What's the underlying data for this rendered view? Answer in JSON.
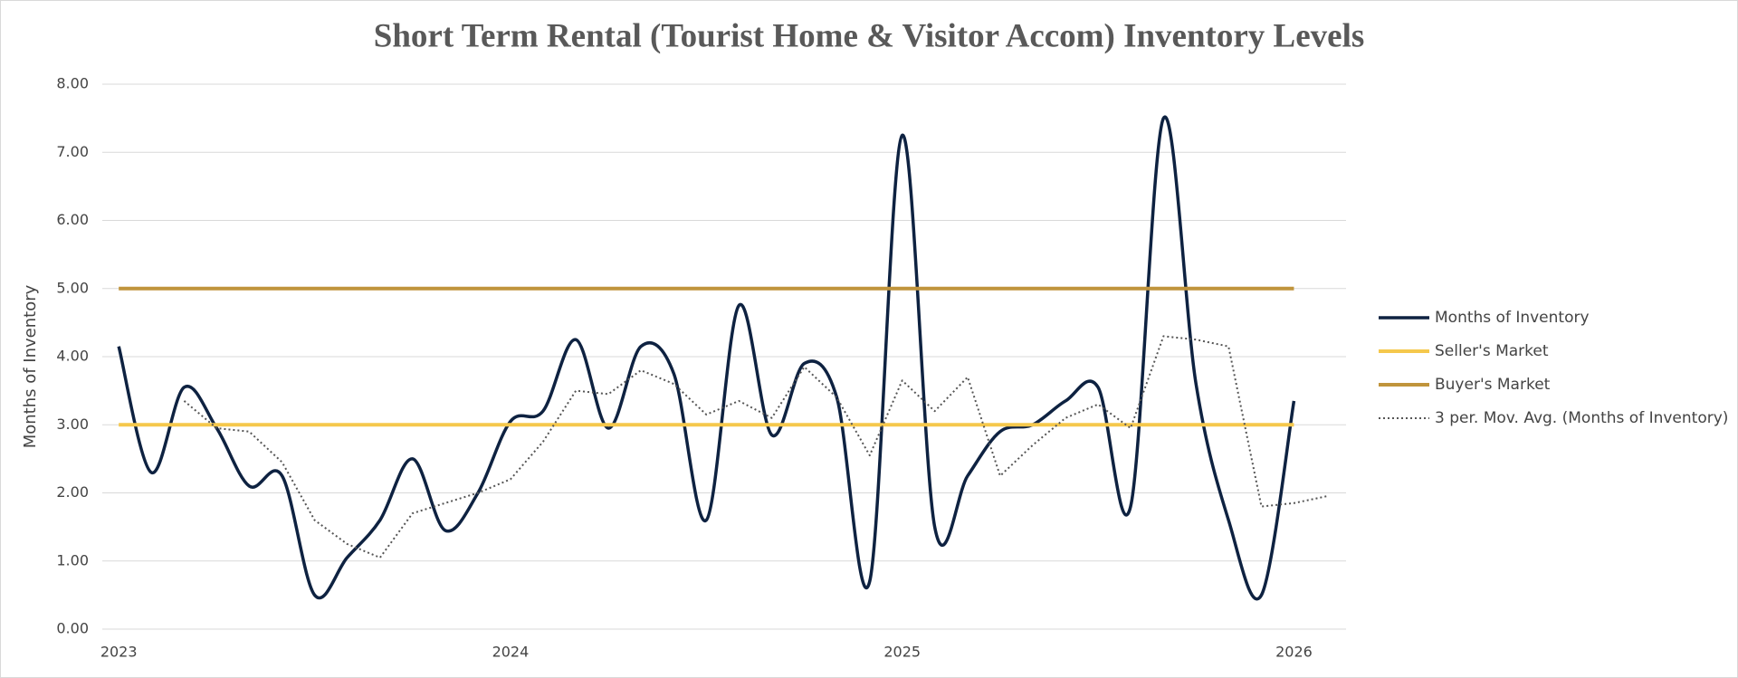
{
  "chart_data": {
    "type": "line",
    "title": "Short Term Rental (Tourist Home & Visitor Accom) Inventory Levels",
    "y_label": "Months of Inventory",
    "x": [
      2023,
      2023.083,
      2023.167,
      2023.25,
      2023.333,
      2023.417,
      2023.5,
      2023.583,
      2023.667,
      2023.75,
      2023.833,
      2023.917,
      2024,
      2024.083,
      2024.167,
      2024.25,
      2024.333,
      2024.417,
      2024.5,
      2024.583,
      2024.667,
      2024.75,
      2024.833,
      2024.917,
      2025,
      2025.083,
      2025.167,
      2025.25,
      2025.333,
      2025.417,
      2025.5,
      2025.583,
      2025.667,
      2025.75,
      2025.833,
      2025.917,
      2026,
      2026.083
    ],
    "xlim": [
      2022.958,
      2026.133
    ],
    "xticks": [
      2023,
      2024,
      2025,
      2026
    ],
    "ylim": [
      0,
      8
    ],
    "yticks": [
      {
        "value": 0,
        "label": "0.00"
      },
      {
        "value": 1,
        "label": "1.00"
      },
      {
        "value": 2,
        "label": "2.00"
      },
      {
        "value": 3,
        "label": "3.00"
      },
      {
        "value": 4,
        "label": "4.00"
      },
      {
        "value": 5,
        "label": "5.00"
      },
      {
        "value": 6,
        "label": "6.00"
      },
      {
        "value": 7,
        "label": "7.00"
      },
      {
        "value": 8,
        "label": "8.00"
      }
    ],
    "grid": true,
    "legend": "right",
    "series": [
      {
        "name": "Months of Inventory",
        "color": "#0e2241",
        "smooth": true,
        "width": 3.5,
        "values": [
          4.15,
          2.3,
          3.55,
          2.95,
          2.1,
          2.25,
          0.5,
          1.05,
          1.6,
          2.5,
          1.45,
          2.0,
          3.05,
          3.2,
          4.25,
          2.95,
          4.15,
          3.75,
          1.6,
          4.75,
          2.85,
          3.9,
          3.4,
          0.7,
          7.25,
          1.5,
          2.25,
          2.9,
          3.0,
          3.35,
          3.55,
          1.8,
          7.5,
          3.6,
          1.6,
          0.5,
          3.35,
          null
        ]
      },
      {
        "name": "Seller's Market",
        "color": "#f5c84c",
        "width": 4,
        "values": [
          3,
          3,
          3,
          3,
          3,
          3,
          3,
          3,
          3,
          3,
          3,
          3,
          3,
          3,
          3,
          3,
          3,
          3,
          3,
          3,
          3,
          3,
          3,
          3,
          3,
          3,
          3,
          3,
          3,
          3,
          3,
          3,
          3,
          3,
          3,
          3,
          3,
          null
        ]
      },
      {
        "name": "Buyer's Market",
        "color": "#c0943c",
        "width": 4,
        "values": [
          5,
          5,
          5,
          5,
          5,
          5,
          5,
          5,
          5,
          5,
          5,
          5,
          5,
          5,
          5,
          5,
          5,
          5,
          5,
          5,
          5,
          5,
          5,
          5,
          5,
          5,
          5,
          5,
          5,
          5,
          5,
          5,
          5,
          5,
          5,
          5,
          5,
          null
        ]
      },
      {
        "name": "3 per. Mov. Avg. (Months of Inventory)",
        "color": "#555555",
        "dash": "dotted",
        "width": 2,
        "values": [
          null,
          null,
          3.35,
          2.95,
          2.9,
          2.45,
          1.6,
          1.25,
          1.05,
          1.7,
          1.85,
          2.0,
          2.2,
          2.75,
          3.5,
          3.45,
          3.8,
          3.6,
          3.15,
          3.35,
          3.1,
          3.85,
          3.4,
          2.55,
          3.65,
          3.2,
          3.7,
          2.25,
          2.7,
          3.1,
          3.3,
          2.95,
          4.3,
          4.25,
          4.15,
          1.8,
          1.85,
          1.95
        ]
      }
    ]
  }
}
